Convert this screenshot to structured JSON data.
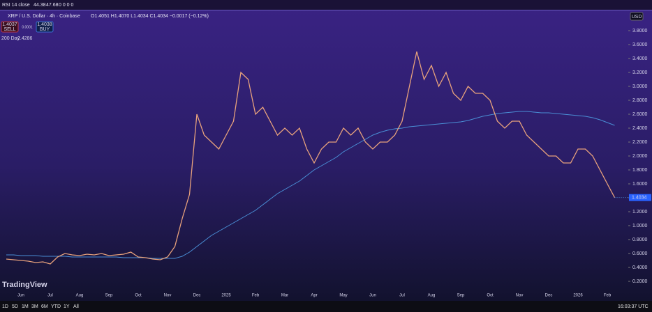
{
  "ui": {
    "rsi_label": "RSI 14 close",
    "rsi_values": [
      "44.38",
      "47.68",
      "0 0 0 0"
    ],
    "symbol": "XRP / U.S. Dollar · 4h · Coinbase",
    "ohlc": "O1.4051 H1.4070 L1.4034 C1.4034 −0.0017 (−0.12%)",
    "sell_price": "1.4037",
    "sell": "SELL",
    "spread": "0.0001",
    "buy_price": "1.4038",
    "buy": "BUY",
    "currency": "USD",
    "brand": "TradingView",
    "timeframes": [
      "1D",
      "5D",
      "1M",
      "3M",
      "6M",
      "YTD",
      "1Y",
      "All"
    ],
    "clock": "16:03:37 UTC"
  },
  "chart_data": {
    "type": "line",
    "categories": [
      null,
      null,
      "Jun",
      null,
      null,
      null,
      "Jul",
      null,
      null,
      null,
      "Aug",
      null,
      null,
      null,
      "Sep",
      null,
      null,
      null,
      "Oct",
      null,
      null,
      null,
      "Nov",
      null,
      null,
      null,
      "Dec",
      null,
      null,
      null,
      "2025",
      null,
      null,
      null,
      "Feb",
      null,
      null,
      null,
      "Mar",
      null,
      null,
      null,
      "Apr",
      null,
      null,
      null,
      "May",
      null,
      null,
      null,
      "Jun",
      null,
      null,
      null,
      "Jul",
      null,
      null,
      null,
      "Aug",
      null,
      null,
      null,
      "Sep",
      null,
      null,
      null,
      "Oct",
      null,
      null,
      null,
      "Nov",
      null,
      null,
      null,
      "Dec",
      null,
      null,
      null,
      "2026",
      null,
      null,
      null,
      "Feb",
      null
    ],
    "series": [
      {
        "name": "XRP",
        "color": "#e8a27c",
        "values": [
          0.52,
          0.51,
          0.5,
          0.49,
          0.47,
          0.48,
          0.45,
          0.55,
          0.6,
          0.58,
          0.57,
          0.59,
          0.58,
          0.6,
          0.57,
          0.58,
          0.59,
          0.62,
          0.55,
          0.54,
          0.52,
          0.51,
          0.55,
          0.7,
          1.1,
          1.45,
          2.6,
          2.3,
          2.2,
          2.1,
          2.3,
          2.5,
          3.2,
          3.1,
          2.6,
          2.7,
          2.5,
          2.3,
          2.4,
          2.3,
          2.4,
          2.1,
          1.9,
          2.1,
          2.2,
          2.2,
          2.4,
          2.3,
          2.4,
          2.2,
          2.1,
          2.2,
          2.2,
          2.3,
          2.5,
          3.0,
          3.5,
          3.1,
          3.3,
          3.0,
          3.2,
          2.9,
          2.8,
          3.0,
          2.9,
          2.9,
          2.8,
          2.5,
          2.4,
          2.5,
          2.5,
          2.3,
          2.2,
          2.1,
          2.0,
          2.0,
          1.9,
          1.9,
          2.1,
          2.1,
          2.0,
          1.8,
          1.6,
          1.4034
        ]
      },
      {
        "name": "200 Day",
        "legend_value": "2.4286",
        "color": "#4a8fd6",
        "values": [
          0.58,
          0.58,
          0.57,
          0.57,
          0.57,
          0.56,
          0.56,
          0.56,
          0.56,
          0.55,
          0.55,
          0.55,
          0.55,
          0.55,
          0.55,
          0.55,
          0.54,
          0.54,
          0.54,
          0.54,
          0.53,
          0.53,
          0.53,
          0.53,
          0.56,
          0.62,
          0.7,
          0.78,
          0.86,
          0.92,
          0.98,
          1.04,
          1.1,
          1.16,
          1.22,
          1.3,
          1.38,
          1.46,
          1.52,
          1.58,
          1.64,
          1.72,
          1.8,
          1.86,
          1.92,
          1.98,
          2.06,
          2.12,
          2.18,
          2.24,
          2.3,
          2.34,
          2.37,
          2.39,
          2.4,
          2.42,
          2.43,
          2.44,
          2.45,
          2.46,
          2.47,
          2.48,
          2.49,
          2.51,
          2.54,
          2.57,
          2.59,
          2.61,
          2.62,
          2.63,
          2.64,
          2.64,
          2.63,
          2.62,
          2.62,
          2.61,
          2.6,
          2.59,
          2.58,
          2.57,
          2.55,
          2.52,
          2.48,
          2.44
        ]
      }
    ],
    "ylim": [
      0,
      4.0
    ],
    "yticks": [
      {
        "value": 0.2,
        "label": "0.2000"
      },
      {
        "value": 0.4,
        "label": "0.4000"
      },
      {
        "value": 0.6,
        "label": "0.6000"
      },
      {
        "value": 0.8,
        "label": "0.8000"
      },
      {
        "value": 1.0,
        "label": "1.0000"
      },
      {
        "value": 1.2,
        "label": "1.2000"
      },
      {
        "value": 1.4,
        "label": "1.4000"
      },
      {
        "value": 1.6,
        "label": "1.6000"
      },
      {
        "value": 1.8,
        "label": "1.8000"
      },
      {
        "value": 2.0,
        "label": "2.0000"
      },
      {
        "value": 2.2,
        "label": "2.2000"
      },
      {
        "value": 2.4,
        "label": "2.4000"
      },
      {
        "value": 2.6,
        "label": "2.6000"
      },
      {
        "value": 2.8,
        "label": "2.8000"
      },
      {
        "value": 3.0,
        "label": "3.0000"
      },
      {
        "value": 3.2,
        "label": "3.2000"
      },
      {
        "value": 3.4,
        "label": "3.4000"
      },
      {
        "value": 3.6,
        "label": "3.6000"
      },
      {
        "value": 3.8,
        "label": "3.8000"
      }
    ],
    "grid": false
  }
}
